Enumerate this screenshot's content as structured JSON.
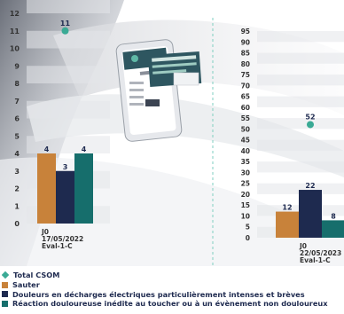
{
  "colors": {
    "total": "#3aaa95",
    "sauter": "#c8823a",
    "douleurs": "#1e2a4f",
    "reaction": "#166e6c",
    "divider": "#7fcfc0",
    "axis_text": "#333333",
    "label_text": "#1e2a4f"
  },
  "chart_data": [
    {
      "type": "bar",
      "categories": [
        "J0\n17/05/2022\nEval-1-C"
      ],
      "y_ticks": [
        0,
        1,
        2,
        3,
        4,
        5,
        6,
        7,
        8,
        9,
        10,
        11,
        12
      ],
      "ylim": [
        0,
        12
      ],
      "series": [
        {
          "name": "Sauter",
          "type": "bar",
          "values": [
            4
          ]
        },
        {
          "name": "Douleurs en décharges électriques particulièrement intenses et brèves",
          "type": "bar",
          "values": [
            3
          ]
        },
        {
          "name": "Réaction douloureuse inédite au toucher ou à un évènement non douloureux",
          "type": "bar",
          "values": [
            4
          ]
        },
        {
          "name": "Total CSOM",
          "type": "scatter",
          "values": [
            11
          ]
        }
      ],
      "grid": true
    },
    {
      "type": "bar",
      "categories": [
        "J0\n22/05/2023\nEval-1-C"
      ],
      "y_ticks": [
        0,
        5,
        10,
        15,
        20,
        25,
        30,
        35,
        40,
        45,
        50,
        55,
        60,
        65,
        70,
        75,
        80,
        85,
        90,
        95
      ],
      "ylim": [
        0,
        95
      ],
      "series": [
        {
          "name": "Sauter",
          "type": "bar",
          "values": [
            12
          ]
        },
        {
          "name": "Douleurs en décharges électriques particulièrement intenses et brèves",
          "type": "bar",
          "values": [
            22
          ]
        },
        {
          "name": "Réaction douloureuse inédite au toucher ou à un évènement non douloureux",
          "type": "bar",
          "values": [
            8
          ]
        },
        {
          "name": "Total CSOM",
          "type": "scatter",
          "values": [
            52
          ]
        }
      ],
      "grid": true
    }
  ],
  "legend": {
    "position": "bottom-left",
    "items": [
      {
        "label": "Total CSOM",
        "marker": "diamond",
        "color": "#3aaa95"
      },
      {
        "label": "Sauter",
        "marker": "square",
        "color": "#c8823a"
      },
      {
        "label": "Douleurs en décharges électriques particulièrement intenses et brèves",
        "marker": "square",
        "color": "#1e2a4f"
      },
      {
        "label": "Réaction douloureuse inédite au toucher ou à un évènement non douloureux",
        "marker": "square",
        "color": "#166e6c"
      }
    ]
  }
}
